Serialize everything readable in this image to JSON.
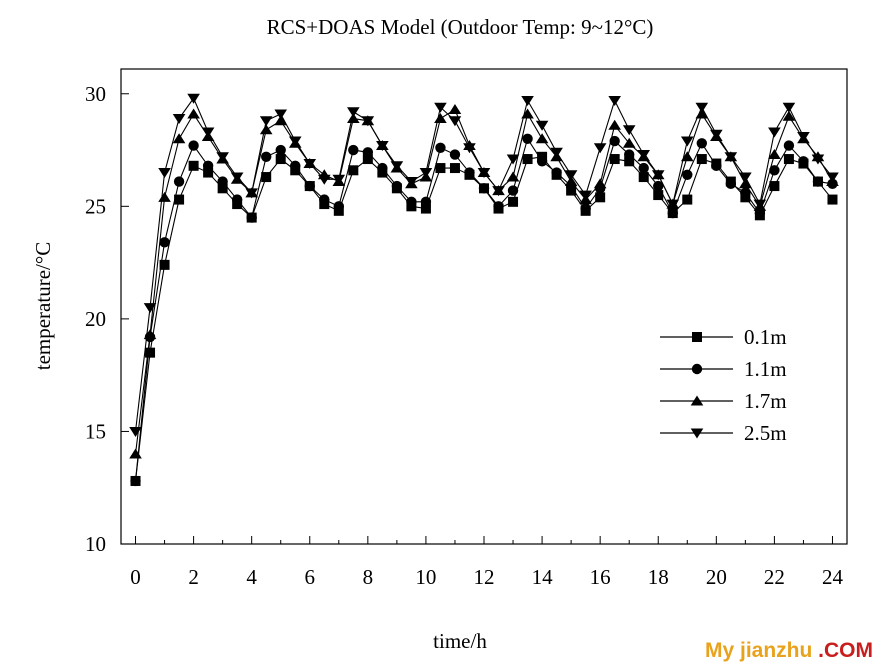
{
  "chart_data": {
    "type": "line",
    "title": "RCS+DOAS Model (Outdoor Temp: 9~12°C)",
    "xlabel": "time/h",
    "ylabel": "temperature/°C",
    "xlim": [
      -0.5,
      24.5
    ],
    "ylim": [
      10,
      31.1
    ],
    "xticks": [
      0,
      2,
      4,
      6,
      8,
      10,
      12,
      14,
      16,
      18,
      20,
      22,
      24
    ],
    "yticks": [
      10,
      15,
      20,
      25,
      30
    ],
    "grid": false,
    "legend_position": "right-center",
    "x": [
      0,
      0.5,
      1,
      1.5,
      2,
      2.5,
      3,
      3.5,
      4,
      4.5,
      5,
      5.5,
      6,
      6.5,
      7,
      7.5,
      8,
      8.5,
      9,
      9.5,
      10,
      10.5,
      11,
      11.5,
      12,
      12.5,
      13,
      13.5,
      14,
      14.5,
      15,
      15.5,
      16,
      16.5,
      17,
      17.5,
      18,
      18.5,
      19,
      19.5,
      20,
      20.5,
      21,
      21.5,
      22,
      22.5,
      23,
      23.5,
      24
    ],
    "series": [
      {
        "name": "0.1m",
        "marker": "square",
        "values": [
          12.8,
          18.5,
          22.4,
          25.3,
          26.8,
          26.5,
          25.8,
          25.1,
          24.5,
          26.3,
          27.1,
          26.6,
          25.9,
          25.1,
          24.8,
          26.6,
          27.1,
          26.5,
          25.8,
          25.0,
          24.9,
          26.7,
          26.7,
          26.4,
          25.8,
          24.9,
          25.2,
          27.1,
          27.2,
          26.4,
          25.7,
          24.8,
          25.4,
          27.1,
          27.0,
          26.3,
          25.5,
          24.7,
          25.3,
          27.1,
          26.9,
          26.1,
          25.4,
          24.6,
          25.9,
          27.1,
          26.9,
          26.1,
          25.3
        ]
      },
      {
        "name": "1.1m",
        "marker": "circle",
        "values": [
          12.8,
          19.2,
          23.4,
          26.1,
          27.7,
          26.8,
          26.1,
          25.3,
          24.5,
          27.2,
          27.5,
          26.8,
          25.9,
          25.3,
          25.0,
          27.5,
          27.4,
          26.7,
          25.9,
          25.2,
          25.2,
          27.6,
          27.3,
          26.5,
          25.8,
          25.0,
          25.7,
          28.0,
          27.0,
          26.5,
          25.9,
          24.9,
          25.8,
          27.9,
          27.3,
          26.7,
          25.9,
          24.7,
          26.4,
          27.8,
          26.8,
          26.0,
          25.6,
          24.7,
          26.6,
          27.7,
          27.0,
          26.1,
          26.0
        ]
      },
      {
        "name": "1.7m",
        "marker": "triangle-up",
        "values": [
          14.0,
          19.3,
          25.4,
          28.0,
          29.1,
          28.1,
          27.1,
          26.2,
          25.6,
          28.4,
          28.8,
          27.8,
          26.9,
          26.4,
          26.1,
          28.9,
          28.8,
          27.7,
          26.7,
          26.0,
          26.3,
          28.9,
          29.3,
          27.7,
          26.5,
          25.7,
          26.3,
          29.1,
          28.0,
          27.2,
          26.1,
          25.3,
          26.0,
          28.6,
          27.8,
          27.2,
          26.4,
          25.1,
          27.2,
          29.1,
          28.1,
          27.2,
          26.0,
          25.0,
          27.3,
          29.0,
          28.0,
          27.2,
          26.1
        ]
      },
      {
        "name": "2.5m",
        "marker": "triangle-down",
        "values": [
          15.0,
          20.5,
          26.5,
          28.9,
          29.8,
          28.3,
          27.2,
          26.3,
          25.6,
          28.8,
          29.1,
          27.9,
          26.9,
          26.2,
          26.2,
          29.2,
          28.8,
          27.7,
          26.8,
          26.1,
          26.5,
          29.4,
          28.8,
          27.6,
          26.5,
          25.7,
          27.1,
          29.7,
          28.6,
          27.4,
          26.4,
          25.5,
          27.6,
          29.7,
          28.4,
          27.3,
          26.4,
          25.1,
          27.9,
          29.4,
          28.2,
          27.2,
          26.3,
          25.1,
          28.3,
          29.4,
          28.1,
          27.1,
          26.3
        ]
      }
    ]
  },
  "watermark": {
    "part1": "My",
    "part2": "jianzhu",
    "part3": ".COM"
  }
}
